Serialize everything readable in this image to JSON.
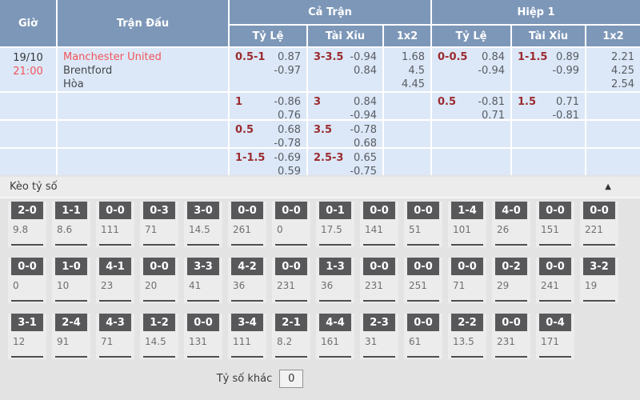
{
  "colors": {
    "header_bg": "#7d97b8",
    "row_bg": "#dce8f7",
    "accent_red": "#f0545a",
    "handicap_maroon": "#9b2b30",
    "score_box_bg": "#58585a",
    "section_bg": "#e3e3e3"
  },
  "odds_table": {
    "headers": {
      "time": "Giờ",
      "match": "Trận Đấu",
      "full_match": "Cả Trận",
      "first_half": "Hiệp 1",
      "handicap": "Tỷ Lệ",
      "over_under": "Tài Xỉu",
      "one_x_two": "1x2"
    },
    "match": {
      "date": "19/10",
      "time": "21:00",
      "home": "Manchester United",
      "away": "Brentford",
      "draw": "Hòa"
    },
    "rows": [
      {
        "ft_hdp": {
          "line": "0.5-1",
          "odds": [
            "0.87",
            "-0.97"
          ]
        },
        "ft_ou": {
          "line": "3-3.5",
          "odds": [
            "-0.94",
            "0.84"
          ]
        },
        "ft_1x2": {
          "odds": [
            "1.68",
            "4.5",
            "4.45"
          ]
        },
        "h1_hdp": {
          "line": "0-0.5",
          "odds": [
            "0.84",
            "-0.94"
          ]
        },
        "h1_ou": {
          "line": "1-1.5",
          "odds": [
            "0.89",
            "-0.99"
          ]
        },
        "h1_1x2": {
          "odds": [
            "2.21",
            "4.25",
            "2.54"
          ]
        }
      },
      {
        "ft_hdp": {
          "line": "1",
          "odds": [
            "-0.86",
            "0.76"
          ]
        },
        "ft_ou": {
          "line": "3",
          "odds": [
            "0.84",
            "-0.94"
          ]
        },
        "ft_1x2": null,
        "h1_hdp": {
          "line": "0.5",
          "odds": [
            "-0.81",
            "0.71"
          ]
        },
        "h1_ou": {
          "line": "1.5",
          "odds": [
            "0.71",
            "-0.81"
          ]
        },
        "h1_1x2": null
      },
      {
        "ft_hdp": {
          "line": "0.5",
          "odds": [
            "0.68",
            "-0.78"
          ]
        },
        "ft_ou": {
          "line": "3.5",
          "odds": [
            "-0.78",
            "0.68"
          ]
        },
        "ft_1x2": null,
        "h1_hdp": null,
        "h1_ou": null,
        "h1_1x2": null
      },
      {
        "ft_hdp": {
          "line": "1-1.5",
          "odds": [
            "-0.69",
            "0.59"
          ]
        },
        "ft_ou": {
          "line": "2.5-3",
          "odds": [
            "0.65",
            "-0.75"
          ]
        },
        "ft_1x2": null,
        "h1_hdp": null,
        "h1_ou": null,
        "h1_1x2": null
      }
    ]
  },
  "score_section": {
    "title": "Kèo tỷ số",
    "collapse_icon": "▲",
    "rows": [
      [
        {
          "score": "2-0",
          "odds": "9.8"
        },
        {
          "score": "1-1",
          "odds": "8.6"
        },
        {
          "score": "0-0",
          "odds": "111"
        },
        {
          "score": "0-3",
          "odds": "71"
        },
        {
          "score": "3-0",
          "odds": "14.5"
        },
        {
          "score": "0-0",
          "odds": "261"
        },
        {
          "score": "0-0",
          "odds": "0"
        },
        {
          "score": "0-1",
          "odds": "17.5"
        },
        {
          "score": "0-0",
          "odds": "141"
        },
        {
          "score": "0-0",
          "odds": "51"
        },
        {
          "score": "1-4",
          "odds": "101"
        },
        {
          "score": "4-0",
          "odds": "26"
        },
        {
          "score": "0-0",
          "odds": "151"
        },
        {
          "score": "0-0",
          "odds": "221"
        }
      ],
      [
        {
          "score": "0-0",
          "odds": "0"
        },
        {
          "score": "1-0",
          "odds": "10"
        },
        {
          "score": "4-1",
          "odds": "23"
        },
        {
          "score": "0-0",
          "odds": "20"
        },
        {
          "score": "3-3",
          "odds": "41"
        },
        {
          "score": "4-2",
          "odds": "36"
        },
        {
          "score": "0-0",
          "odds": "231"
        },
        {
          "score": "1-3",
          "odds": "36"
        },
        {
          "score": "0-0",
          "odds": "231"
        },
        {
          "score": "0-0",
          "odds": "251"
        },
        {
          "score": "0-0",
          "odds": "71"
        },
        {
          "score": "0-2",
          "odds": "29"
        },
        {
          "score": "0-0",
          "odds": "241"
        },
        {
          "score": "3-2",
          "odds": "19"
        }
      ],
      [
        {
          "score": "3-1",
          "odds": "12"
        },
        {
          "score": "2-4",
          "odds": "91"
        },
        {
          "score": "4-3",
          "odds": "71"
        },
        {
          "score": "1-2",
          "odds": "14.5"
        },
        {
          "score": "0-0",
          "odds": "131"
        },
        {
          "score": "3-4",
          "odds": "111"
        },
        {
          "score": "2-1",
          "odds": "8.2"
        },
        {
          "score": "4-4",
          "odds": "161"
        },
        {
          "score": "2-3",
          "odds": "31"
        },
        {
          "score": "0-0",
          "odds": "61"
        },
        {
          "score": "2-2",
          "odds": "13.5"
        },
        {
          "score": "0-0",
          "odds": "231"
        },
        {
          "score": "0-4",
          "odds": "171"
        }
      ]
    ],
    "other_label": "Tỷ số khác",
    "other_value": "0"
  }
}
